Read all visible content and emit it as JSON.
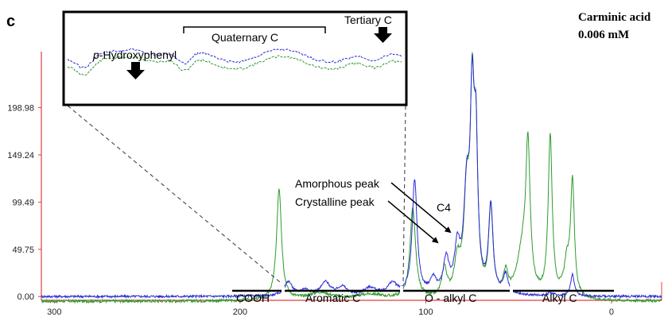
{
  "panel_letter": "c",
  "sample_label": [
    "Carminic acid",
    "0.006 mM"
  ],
  "colors": {
    "series_green": "#2e9a2e",
    "series_blue": "#2b2bd8",
    "axis_red": "#e04040"
  },
  "chart_data": {
    "type": "line",
    "x_axis": {
      "range": [
        307,
        -27
      ],
      "reversed": true,
      "ticks": [
        300,
        200,
        100,
        0
      ],
      "tick_labels": [
        "300",
        "200",
        "100",
        "0"
      ]
    },
    "y_axis": {
      "range": [
        -4,
        258
      ],
      "ticks": [
        0.0,
        49.75,
        99.49,
        149.24,
        198.98
      ],
      "tick_labels": [
        "0.00",
        "49.75",
        "99.49",
        "149.24",
        "198.98"
      ]
    },
    "grid": false,
    "series": [
      {
        "color": "#2e9a2e",
        "baseline": -5,
        "noise": 1.5,
        "peaks": [
          {
            "x": 179,
            "h": 118,
            "w": 1.6
          },
          {
            "x": 107,
            "h": 95,
            "w": 1.8
          },
          {
            "x": 90,
            "h": 30,
            "w": 1.6
          },
          {
            "x": 83,
            "h": 35,
            "w": 2.0
          },
          {
            "x": 78,
            "h": 100,
            "w": 1.8
          },
          {
            "x": 75,
            "h": 190,
            "w": 1.3
          },
          {
            "x": 73,
            "h": 145,
            "w": 1.2
          },
          {
            "x": 65,
            "h": 92,
            "w": 1.4
          },
          {
            "x": 57,
            "h": 23,
            "w": 1.5
          },
          {
            "x": 48,
            "h": 45,
            "w": 3.5
          },
          {
            "x": 45,
            "h": 148,
            "w": 1.4
          },
          {
            "x": 33,
            "h": 170,
            "w": 1.3
          },
          {
            "x": 24,
            "h": 34,
            "w": 2.0
          },
          {
            "x": 21,
            "h": 119,
            "w": 1.2
          },
          {
            "x": 157,
            "h": 8,
            "w": 8
          },
          {
            "x": 130,
            "h": 6,
            "w": 10
          }
        ]
      },
      {
        "color": "#2b2bd8",
        "baseline": 0,
        "noise": 1.2,
        "peaks": [
          {
            "x": 174,
            "h": 15,
            "w": 2.5
          },
          {
            "x": 165,
            "h": 6,
            "w": 3
          },
          {
            "x": 154,
            "h": 14,
            "w": 3
          },
          {
            "x": 145,
            "h": 9,
            "w": 3
          },
          {
            "x": 130,
            "h": 8,
            "w": 4
          },
          {
            "x": 118,
            "h": 12,
            "w": 3
          },
          {
            "x": 106,
            "h": 120,
            "w": 1.6
          },
          {
            "x": 96,
            "h": 15,
            "w": 2
          },
          {
            "x": 89,
            "h": 35,
            "w": 1.8
          },
          {
            "x": 83,
            "h": 45,
            "w": 1.8
          },
          {
            "x": 78,
            "h": 100,
            "w": 1.8
          },
          {
            "x": 75,
            "h": 185,
            "w": 1.3
          },
          {
            "x": 73,
            "h": 140,
            "w": 1.2
          },
          {
            "x": 65,
            "h": 92,
            "w": 1.4
          },
          {
            "x": 57,
            "h": 20,
            "w": 1.5
          },
          {
            "x": 33,
            "h": 3,
            "w": 2
          },
          {
            "x": 21,
            "h": 23,
            "w": 1.2
          }
        ]
      }
    ],
    "region_labels": [
      "COOH",
      "Aromatic C",
      "O - alkyl C",
      "Alkyl C"
    ],
    "annotations": [
      "Amorphous peak",
      "Crystalline peak",
      "C4"
    ],
    "inset": {
      "labels": [
        "p-Hydroxyphenyl",
        "Quaternary C",
        "Tertiary C"
      ]
    }
  }
}
